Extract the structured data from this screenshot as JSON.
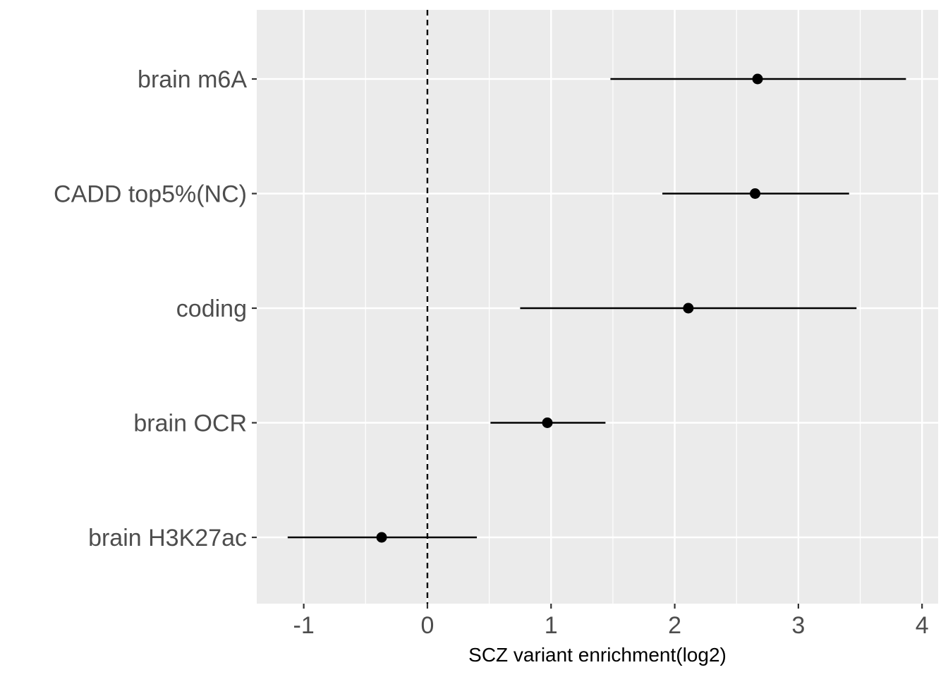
{
  "chart_data": {
    "type": "scatter",
    "subtype": "forest-plot",
    "title": "",
    "xlabel": "SCZ variant enrichment(log2)",
    "ylabel": "",
    "xlim": [
      -1.38,
      4.13
    ],
    "x_ticks": [
      -1,
      0,
      1,
      2,
      3,
      4
    ],
    "x_tick_labels": [
      "-1",
      "0",
      "1",
      "2",
      "3",
      "4"
    ],
    "reference_line": {
      "x": 0,
      "style": "dashed"
    },
    "grid": true,
    "legend": "none",
    "categories": [
      "brain m6A",
      "CADD top5%(NC)",
      "coding",
      "brain OCR",
      "brain H3K27ac"
    ],
    "series": [
      {
        "estimate": [
          2.67,
          2.65,
          2.11,
          0.97,
          -0.37
        ],
        "lower": [
          1.48,
          1.9,
          0.75,
          0.51,
          -1.13
        ],
        "upper": [
          3.87,
          3.41,
          3.47,
          1.44,
          0.4
        ]
      }
    ],
    "colors": {
      "panel_background": "#ebebeb",
      "grid": "#ffffff",
      "points": "#000000"
    }
  }
}
